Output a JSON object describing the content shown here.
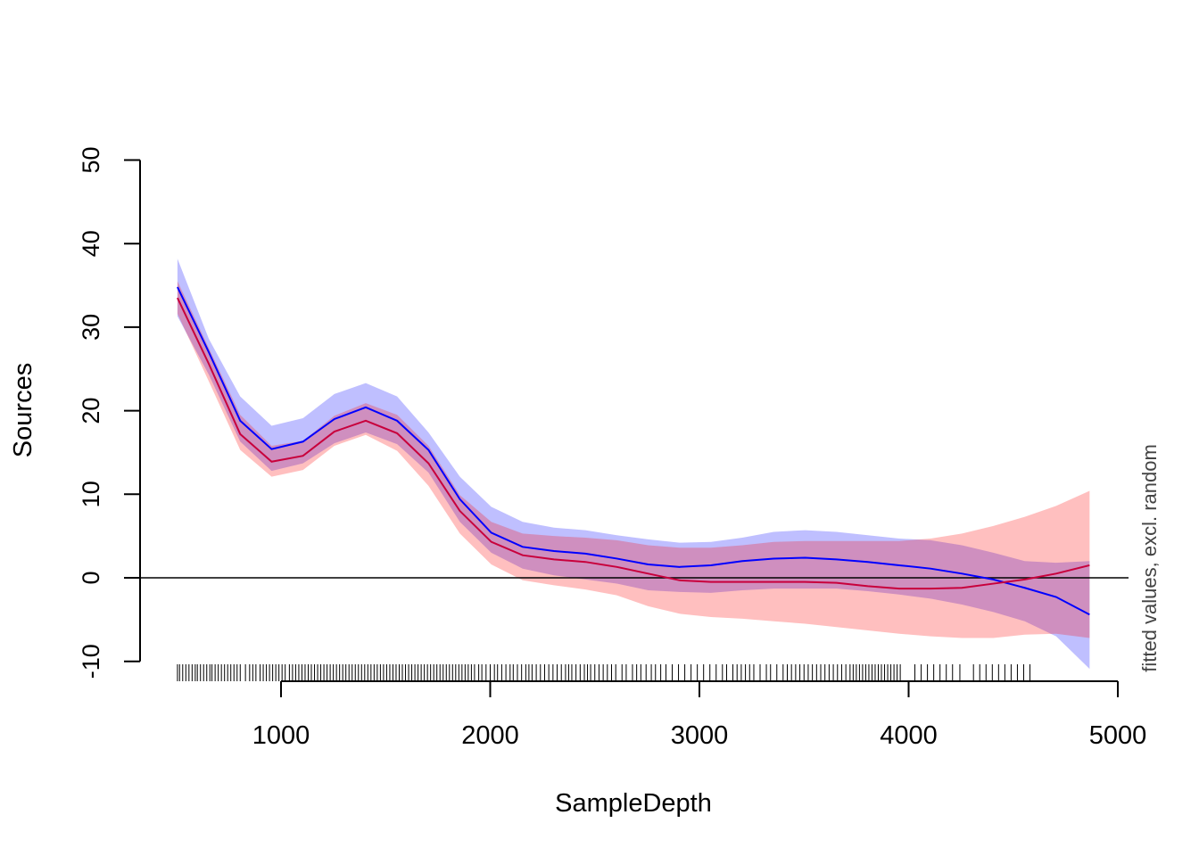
{
  "chart_data": {
    "type": "line",
    "xlabel": "SampleDepth",
    "ylabel": "Sources",
    "side_label": "fitted values, excl. random",
    "xlim": [
      330,
      5060
    ],
    "ylim": [
      -10,
      50
    ],
    "x_ticks": [
      1000,
      2000,
      3000,
      4000,
      5000
    ],
    "x_tick_labels": [
      "1000",
      "2000",
      "3000",
      "4000",
      "5000"
    ],
    "y_ticks": [
      -10,
      0,
      10,
      20,
      30,
      40,
      50
    ],
    "y_tick_labels": [
      "-10",
      "0",
      "10",
      "20",
      "30",
      "40",
      "50"
    ],
    "reference_line_y": 0,
    "x": [
      505,
      655,
      805,
      955,
      1105,
      1255,
      1405,
      1555,
      1705,
      1855,
      2005,
      2155,
      2305,
      2455,
      2605,
      2755,
      2905,
      3055,
      3205,
      3355,
      3505,
      3655,
      3805,
      3955,
      4105,
      4255,
      4405,
      4555,
      4705,
      4865
    ],
    "series": [
      {
        "name": "blue",
        "color": "#0000FF",
        "band_color": "rgba(0,0,255,0.25)",
        "fit": [
          34.8,
          27.0,
          18.8,
          15.4,
          16.3,
          19.0,
          20.4,
          18.8,
          15.3,
          9.4,
          5.4,
          3.7,
          3.2,
          2.9,
          2.3,
          1.6,
          1.3,
          1.5,
          2.0,
          2.3,
          2.4,
          2.2,
          1.9,
          1.5,
          1.1,
          0.5,
          -0.2,
          -1.2,
          -2.3,
          -4.4
        ],
        "upper": [
          38.2,
          28.6,
          21.7,
          18.2,
          19.1,
          22.0,
          23.3,
          21.7,
          17.4,
          12.1,
          8.5,
          6.7,
          6.0,
          5.7,
          5.1,
          4.6,
          4.2,
          4.3,
          4.8,
          5.5,
          5.7,
          5.5,
          5.1,
          4.7,
          4.5,
          3.9,
          3.0,
          2.0,
          1.8,
          2.0
        ],
        "lower": [
          31.3,
          24.3,
          16.3,
          12.8,
          13.7,
          16.1,
          17.4,
          16.0,
          12.6,
          6.7,
          3.0,
          1.1,
          0.3,
          -0.2,
          -0.7,
          -1.5,
          -1.7,
          -1.8,
          -1.5,
          -1.3,
          -1.3,
          -1.3,
          -1.6,
          -2.0,
          -2.5,
          -3.2,
          -4.1,
          -5.2,
          -7.0,
          -10.9
        ]
      },
      {
        "name": "red",
        "color": "#C8003C",
        "band_color": "rgba(255,0,0,0.25)",
        "fit": [
          33.5,
          25.6,
          17.2,
          13.9,
          14.6,
          17.5,
          18.8,
          17.3,
          13.7,
          8.0,
          4.3,
          2.7,
          2.2,
          1.9,
          1.3,
          0.5,
          -0.3,
          -0.5,
          -0.5,
          -0.5,
          -0.5,
          -0.6,
          -1.0,
          -1.3,
          -1.3,
          -1.2,
          -0.7,
          -0.2,
          0.5,
          1.5
        ],
        "upper": [
          35.5,
          27.5,
          19.5,
          15.8,
          16.4,
          19.4,
          20.9,
          19.5,
          15.8,
          9.9,
          6.7,
          5.3,
          5.0,
          4.8,
          4.5,
          3.9,
          3.6,
          3.6,
          3.9,
          4.3,
          4.4,
          4.4,
          4.4,
          4.4,
          4.7,
          5.3,
          6.2,
          7.3,
          8.6,
          10.4
        ],
        "lower": [
          31.6,
          23.5,
          15.3,
          12.1,
          12.9,
          15.8,
          17.1,
          15.2,
          11.0,
          5.3,
          1.6,
          -0.3,
          -0.9,
          -1.4,
          -2.1,
          -3.4,
          -4.3,
          -4.7,
          -4.9,
          -5.2,
          -5.5,
          -5.9,
          -6.3,
          -6.7,
          -7.0,
          -7.2,
          -7.2,
          -6.8,
          -6.7,
          -7.2
        ]
      }
    ],
    "rug": [
      505,
      515,
      530,
      545,
      560,
      575,
      590,
      600,
      615,
      630,
      645,
      660,
      670,
      685,
      700,
      715,
      730,
      745,
      760,
      775,
      790,
      805,
      830,
      850,
      865,
      880,
      900,
      915,
      930,
      945,
      960,
      975,
      990,
      1005,
      1020,
      1040,
      1055,
      1070,
      1085,
      1100,
      1115,
      1130,
      1145,
      1160,
      1175,
      1190,
      1205,
      1220,
      1235,
      1250,
      1265,
      1280,
      1295,
      1310,
      1325,
      1340,
      1355,
      1370,
      1385,
      1400,
      1415,
      1430,
      1445,
      1460,
      1475,
      1490,
      1505,
      1520,
      1535,
      1550,
      1565,
      1580,
      1595,
      1610,
      1625,
      1640,
      1655,
      1670,
      1685,
      1700,
      1715,
      1730,
      1745,
      1760,
      1775,
      1790,
      1805,
      1820,
      1835,
      1850,
      1865,
      1880,
      1895,
      1910,
      1925,
      1945,
      1960,
      1980,
      2000,
      2020,
      2035,
      2055,
      2075,
      2095,
      2110,
      2130,
      2150,
      2170,
      2185,
      2200,
      2220,
      2240,
      2260,
      2280,
      2300,
      2320,
      2340,
      2360,
      2375,
      2390,
      2410,
      2430,
      2450,
      2465,
      2480,
      2500,
      2520,
      2540,
      2560,
      2580,
      2600,
      2630,
      2650,
      2680,
      2700,
      2720,
      2745,
      2770,
      2790,
      2815,
      2840,
      2870,
      2900,
      2930,
      2960,
      2990,
      3020,
      3050,
      3080,
      3110,
      3130,
      3160,
      3180,
      3200,
      3220,
      3240,
      3260,
      3290,
      3320,
      3340,
      3370,
      3400,
      3420,
      3440,
      3460,
      3480,
      3500,
      3520,
      3540,
      3560,
      3580,
      3600,
      3620,
      3640,
      3660,
      3680,
      3700,
      3720,
      3735,
      3750,
      3765,
      3780,
      3795,
      3810,
      3825,
      3840,
      3855,
      3870,
      3885,
      3900,
      3915,
      3930,
      3945,
      3960,
      4030,
      4060,
      4090,
      4120,
      4150,
      4180,
      4210,
      4245,
      4310,
      4340,
      4370,
      4400,
      4430,
      4460,
      4490,
      4520,
      4550,
      4580
    ]
  }
}
